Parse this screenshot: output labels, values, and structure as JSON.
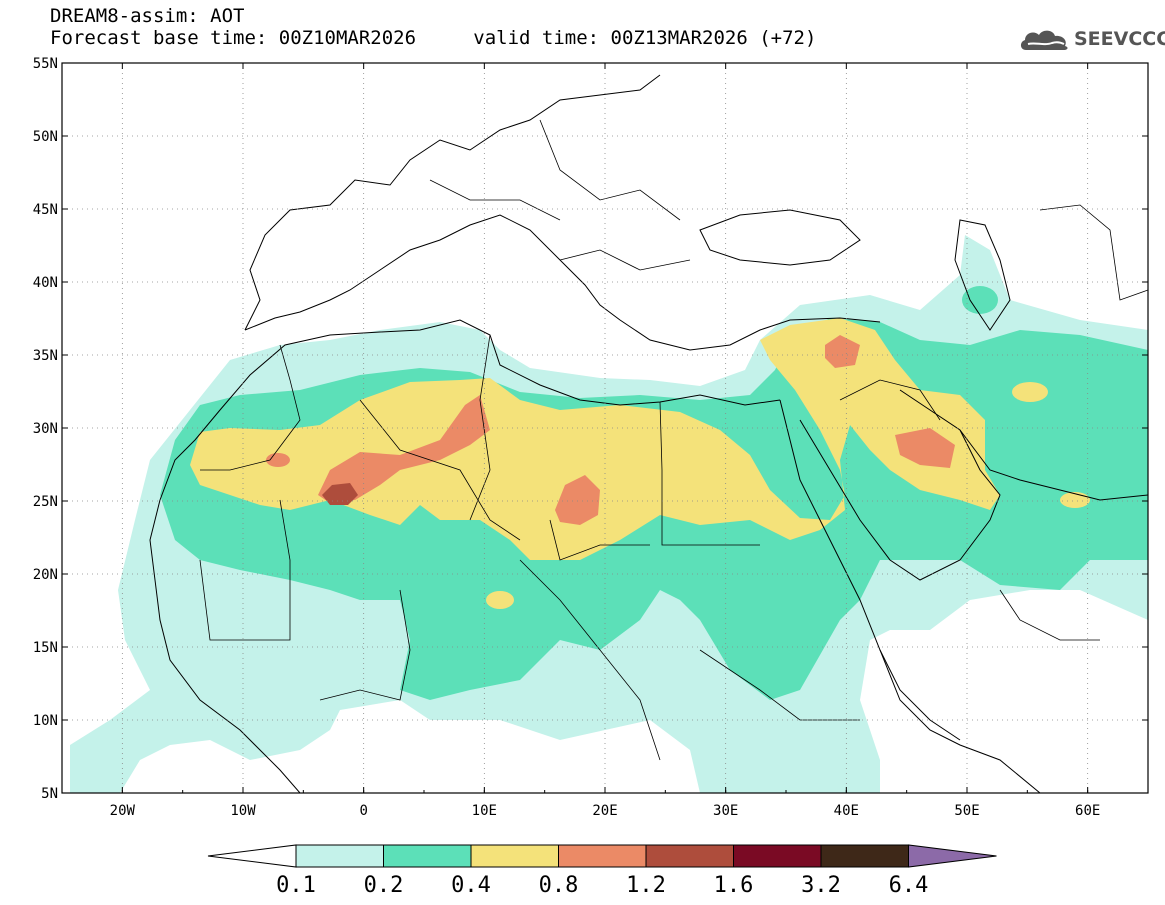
{
  "header": {
    "product_title": "DREAM8-assim: AOT",
    "base_time_label": "Forecast base time: 00Z10MAR2026",
    "valid_time_label": "valid time: 00Z13MAR2026 (+72)",
    "logo_text": "SEEVCCC",
    "logo_icon": "cloud-icon"
  },
  "map": {
    "lon_range": [
      -25,
      65
    ],
    "lat_range": [
      5,
      55
    ],
    "lon_ticks": [
      {
        "value": -20,
        "label": "20W"
      },
      {
        "value": -10,
        "label": "10W"
      },
      {
        "value": 0,
        "label": "0"
      },
      {
        "value": 10,
        "label": "10E"
      },
      {
        "value": 20,
        "label": "20E"
      },
      {
        "value": 30,
        "label": "30E"
      },
      {
        "value": 40,
        "label": "40E"
      },
      {
        "value": 50,
        "label": "50E"
      },
      {
        "value": 60,
        "label": "60E"
      }
    ],
    "lat_ticks": [
      {
        "value": 55,
        "label": "55N"
      },
      {
        "value": 50,
        "label": "50N"
      },
      {
        "value": 45,
        "label": "45N"
      },
      {
        "value": 40,
        "label": "40N"
      },
      {
        "value": 35,
        "label": "35N"
      },
      {
        "value": 30,
        "label": "30N"
      },
      {
        "value": 25,
        "label": "25N"
      },
      {
        "value": 20,
        "label": "20N"
      },
      {
        "value": 15,
        "label": "15N"
      },
      {
        "value": 10,
        "label": "10N"
      },
      {
        "value": 5,
        "label": "5N"
      }
    ],
    "grid": true
  },
  "colorbar": {
    "colors": [
      "#ffffff",
      "#c4f2ea",
      "#5ce0b8",
      "#f4e27a",
      "#eb8a66",
      "#ae4d3c",
      "#7a0a24",
      "#3e2818",
      "#8c6aa8"
    ],
    "labels": [
      "0.1",
      "0.2",
      "0.4",
      "0.8",
      "1.2",
      "1.6",
      "3.2",
      "6.4"
    ]
  }
}
